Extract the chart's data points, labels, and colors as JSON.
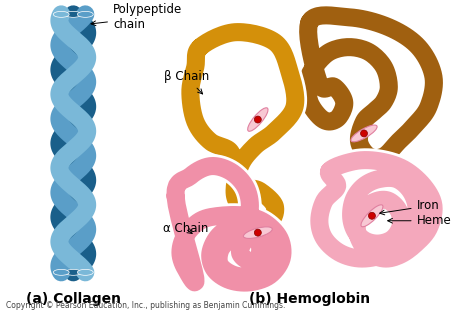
{
  "bg_color": "#ffffff",
  "title_a": "(a) Collagen",
  "title_b": "(b) Hemoglobin",
  "copyright": "Copyright © Pearson Education, Inc., publishing as Benjamin Cummings.",
  "label_polypeptide": "Polypeptide\nchain",
  "label_beta": "β Chain",
  "label_alpha": "α Chain",
  "label_iron": "Iron",
  "label_heme": "Heme",
  "col_light": "#7ab8d8",
  "col_mid": "#5a9ec8",
  "col_dark": "#1a5f8a",
  "beta1_color": "#d4900a",
  "beta2_color": "#a06010",
  "alpha1_color": "#f090a8",
  "alpha2_color": "#f4a8bc",
  "heme_color": "#f8c8d4",
  "iron_color": "#cc0000",
  "title_fontsize": 10,
  "label_fontsize": 8.5,
  "copy_fontsize": 5.5,
  "lw_tube": 12,
  "lw_tube_hem": 10
}
